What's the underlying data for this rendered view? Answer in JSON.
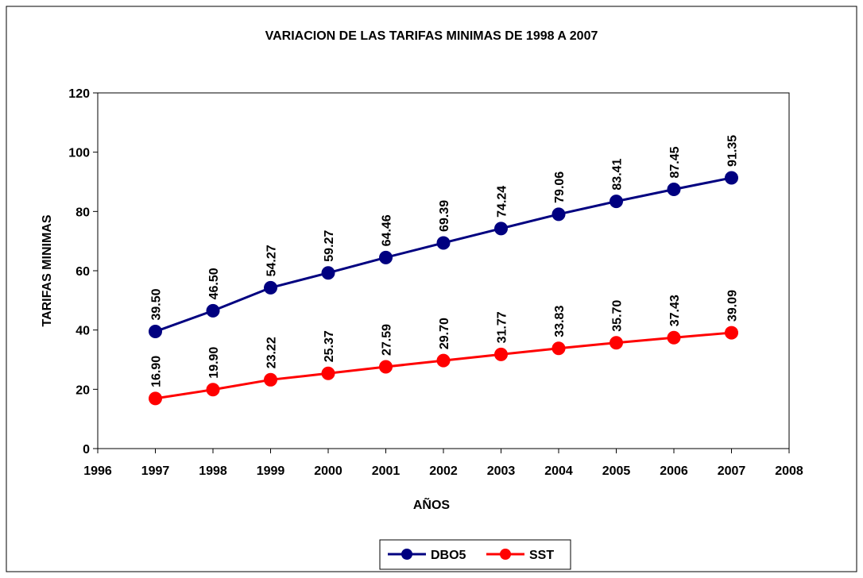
{
  "chart_data": {
    "type": "line",
    "title": "VARIACION DE LAS TARIFAS MINIMAS DE 1998 A 2007",
    "x_label": "AÑOS",
    "y_label": "TARIFAS MINIMAS",
    "x": [
      1997,
      1998,
      1999,
      2000,
      2001,
      2002,
      2003,
      2004,
      2005,
      2006,
      2007
    ],
    "series": [
      {
        "name": "DBO5",
        "color": "#000080",
        "values": [
          39.5,
          46.5,
          54.27,
          59.27,
          64.46,
          69.39,
          74.24,
          79.06,
          83.41,
          87.45,
          91.35
        ],
        "value_labels": [
          "39.50",
          "46.50",
          "54.27",
          "59.27",
          "64.46",
          "69.39",
          "74.24",
          "79.06",
          "83.41",
          "87.45",
          "91.35"
        ]
      },
      {
        "name": "SST",
        "color": "#ff0000",
        "values": [
          16.9,
          19.9,
          23.22,
          25.37,
          27.59,
          29.7,
          31.77,
          33.83,
          35.7,
          37.43,
          39.09
        ],
        "value_labels": [
          "16.90",
          "19.90",
          "23.22",
          "25.37",
          "27.59",
          "29.70",
          "31.77",
          "33.83",
          "35.70",
          "37.43",
          "39.09"
        ]
      }
    ],
    "xlim": [
      1996,
      2008
    ],
    "xticks": [
      1996,
      1997,
      1998,
      1999,
      2000,
      2001,
      2002,
      2003,
      2004,
      2005,
      2006,
      2007,
      2008
    ],
    "ylim": [
      0,
      120
    ],
    "yticks": [
      0,
      20,
      40,
      60,
      80,
      100,
      120
    ],
    "grid": false,
    "legend": "bottom"
  }
}
